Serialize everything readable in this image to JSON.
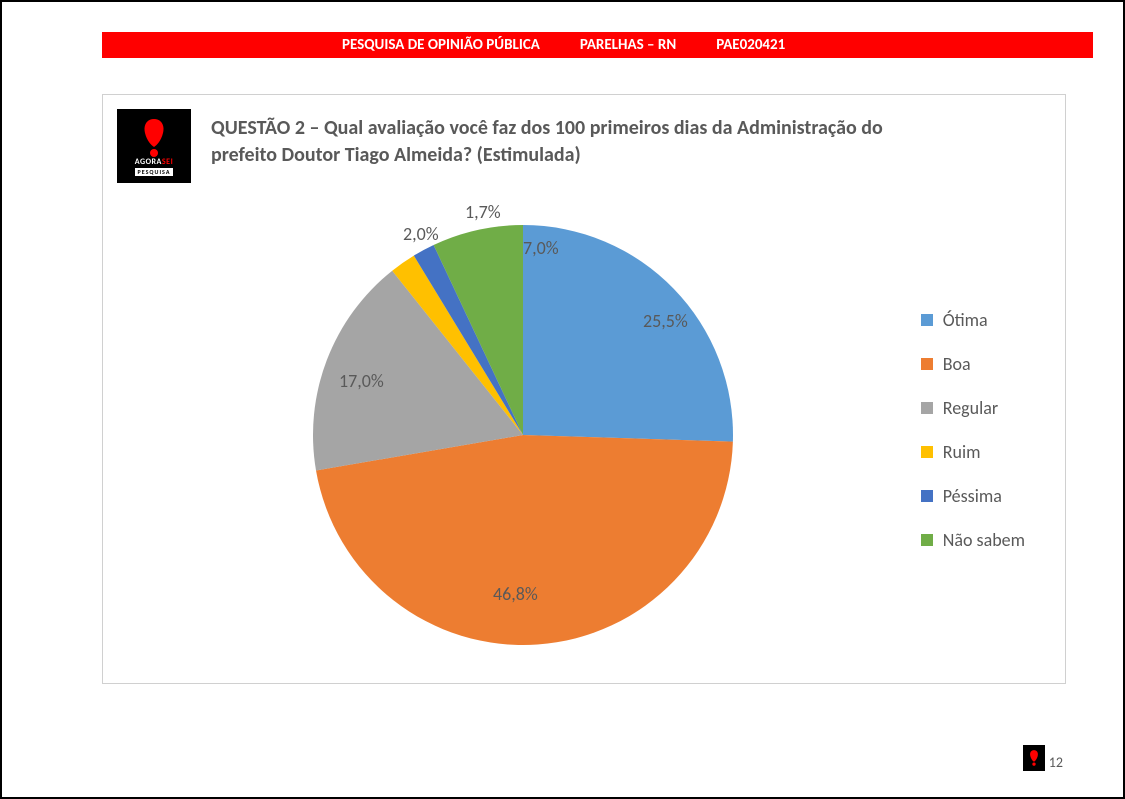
{
  "header": {
    "title": "PESQUISA DE OPINIÃO PÚBLICA",
    "location": "PARELHAS – RN",
    "code": "PAE020421",
    "bg_color": "#ff0000",
    "text_color": "#ffffff"
  },
  "logo": {
    "line1a": "AGORA",
    "line1b": "SEI",
    "line2": "PESQUISA",
    "mark_color": "#ff0000",
    "bg": "#000000"
  },
  "chart": {
    "type": "pie",
    "title": "QUESTÃO 2 – Qual avaliação você faz dos 100 primeiros dias da Administração do prefeito Doutor Tiago Almeida? (Estimulada)",
    "title_color": "#595959",
    "title_fontsize": 20,
    "slices": [
      {
        "label": "Ótima",
        "value": 25.5,
        "display": "25,5%",
        "color": "#5b9bd5"
      },
      {
        "label": "Boa",
        "value": 46.8,
        "display": "46,8%",
        "color": "#ed7d31"
      },
      {
        "label": "Regular",
        "value": 17.0,
        "display": "17,0%",
        "color": "#a5a5a5"
      },
      {
        "label": "Ruim",
        "value": 2.0,
        "display": "2,0%",
        "color": "#ffc000"
      },
      {
        "label": "Péssima",
        "value": 1.7,
        "display": "1,7%",
        "color": "#4472c4"
      },
      {
        "label": "Não sabem",
        "value": 7.0,
        "display": "7,0%",
        "color": "#70ad47"
      }
    ],
    "label_color": "#595959",
    "label_fontsize": 18,
    "legend_fontsize": 18,
    "legend_swatch_size": 12,
    "pie_radius": 210,
    "start_angle_deg": -90,
    "background_color": "#ffffff",
    "border_color": "#d0d0d0"
  },
  "page_number": "12"
}
